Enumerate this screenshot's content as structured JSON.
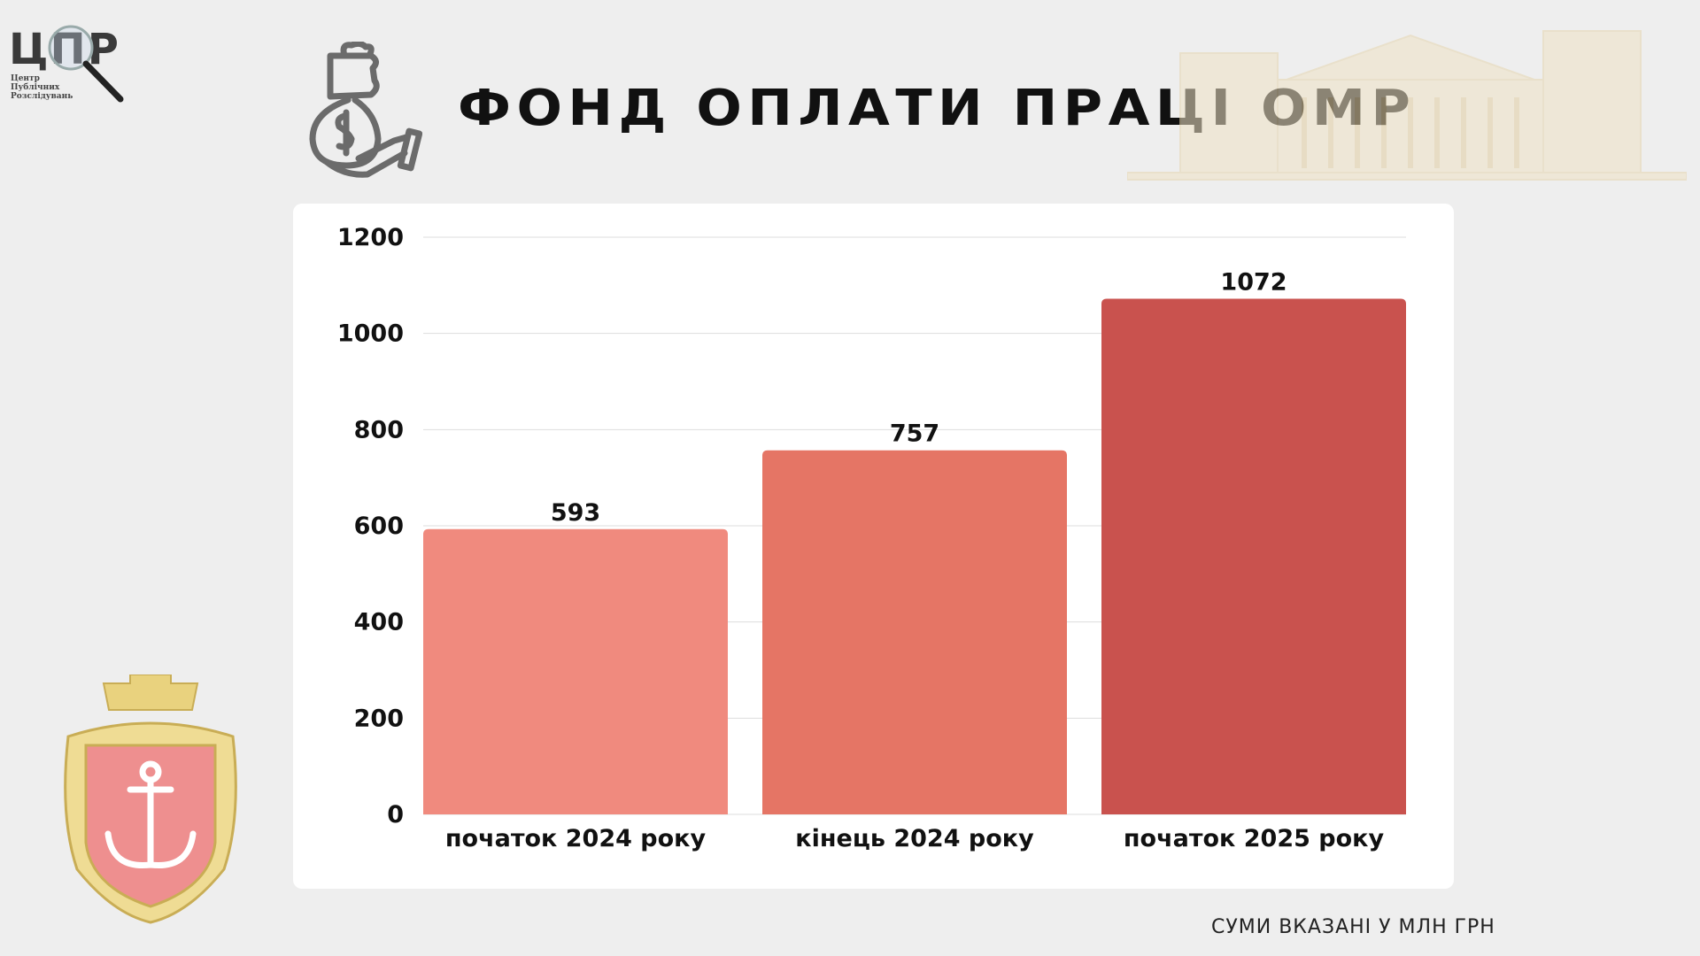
{
  "logo": {
    "abbr": "ЦПР",
    "name_lines": [
      "Центр",
      "Публічних",
      "Розслідувань"
    ]
  },
  "header": {
    "title": "ФОНД ОПЛАТИ ПРАЦІ ОМР"
  },
  "footnote": "СУМИ ВКАЗАНІ У МЛН ГРН",
  "colors": {
    "bars": [
      "#f08a7e",
      "#e57565",
      "#c9524e"
    ],
    "background": "#eeeeee",
    "card": "#ffffff"
  },
  "chart_data": {
    "type": "bar",
    "title": "ФОНД ОПЛАТИ ПРАЦІ ОМР",
    "categories": [
      "початок 2024 року",
      "кінець 2024 року",
      "початок 2025 року"
    ],
    "values": [
      593,
      757,
      1072
    ],
    "data_labels": [
      "593",
      "757",
      "1072"
    ],
    "xlabel": "",
    "ylabel": "",
    "ylim": [
      0,
      1200
    ],
    "yticks": [
      0,
      200,
      400,
      600,
      800,
      1000,
      1200
    ],
    "grid": true,
    "unit": "млн грн"
  }
}
